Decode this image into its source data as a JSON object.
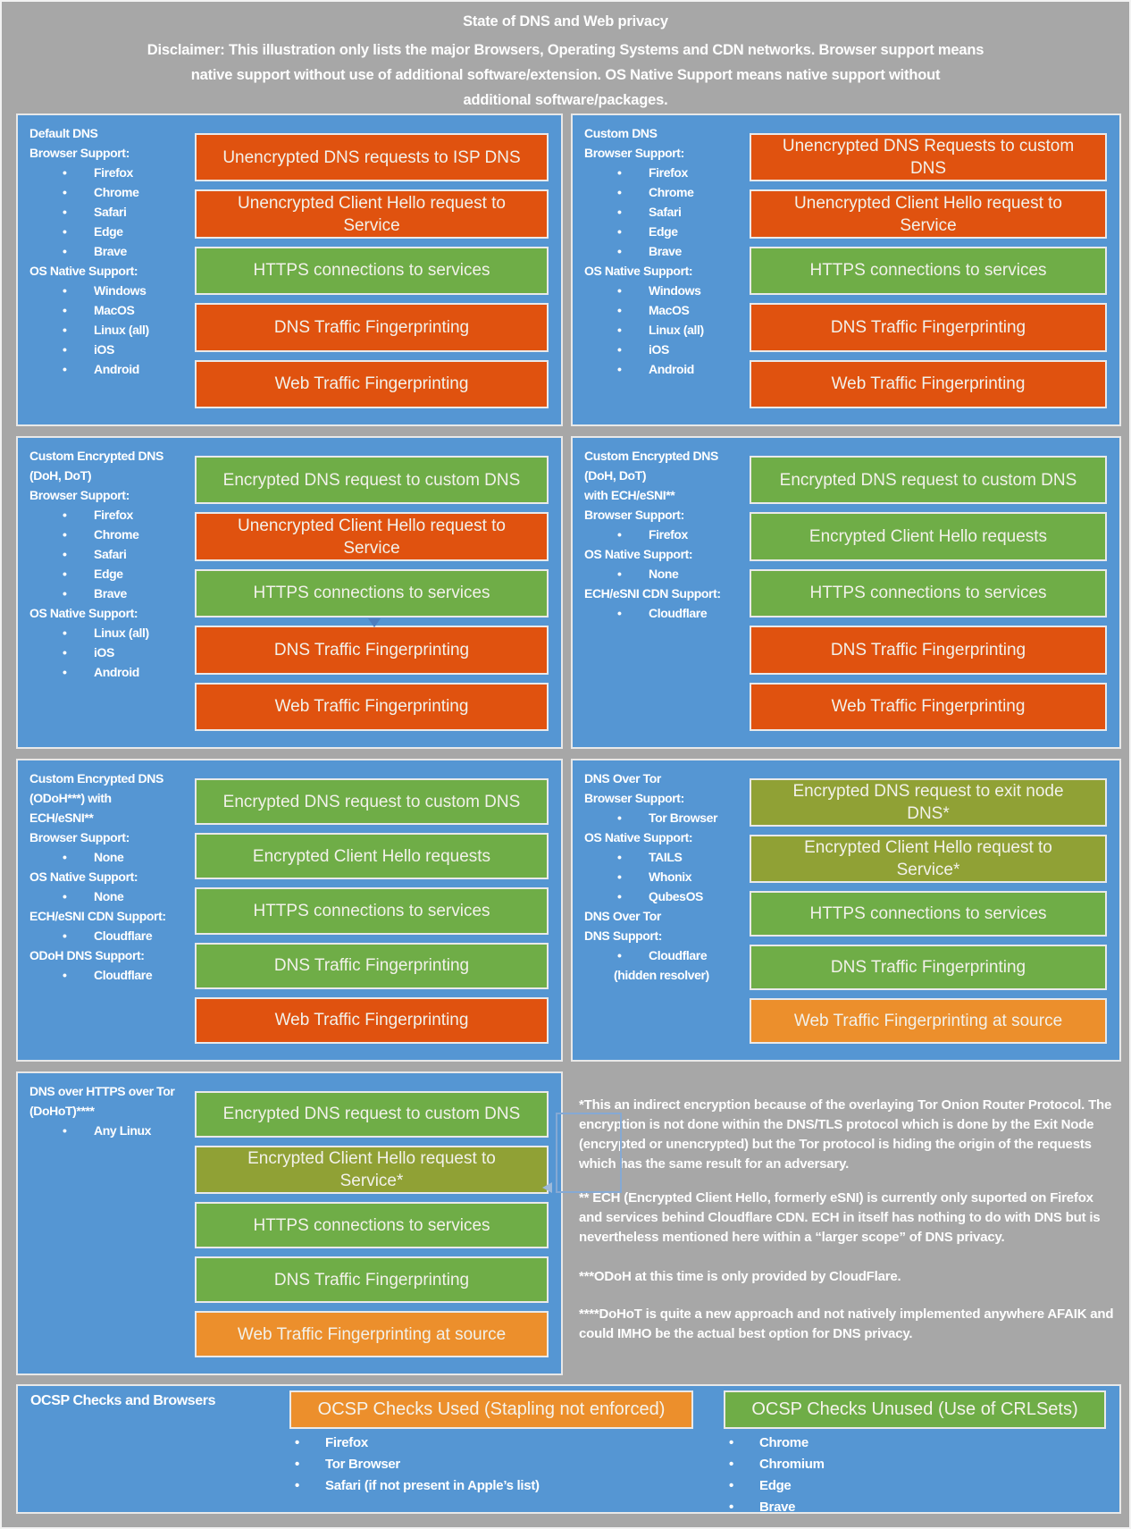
{
  "header": {
    "title": "State of DNS and Web privacy",
    "disclaimer_lines": [
      "Disclaimer: This illustration only lists the major Browsers, Operating Systems and CDN networks. Browser support means",
      "native support without use of additional software/extension. OS Native Support means native support without",
      "additional software/packages."
    ]
  },
  "colors": {
    "background": "#A7A7A7",
    "panel_blue": "#5596D3",
    "bar_red_bad": "#E0520F",
    "bar_green_good": "#6FAD47",
    "bar_olive_partial": "#90A135",
    "bar_amber_warning": "#EC8F2C"
  },
  "panels": [
    {
      "id": "default-dns",
      "sidebar": [
        {
          "t": "title",
          "text": "Default DNS"
        },
        {
          "t": "label",
          "text": "Browser Support:"
        },
        {
          "t": "bullet",
          "text": "Firefox"
        },
        {
          "t": "bullet",
          "text": "Chrome"
        },
        {
          "t": "bullet",
          "text": "Safari"
        },
        {
          "t": "bullet",
          "text": "Edge"
        },
        {
          "t": "bullet",
          "text": "Brave"
        },
        {
          "t": "label",
          "text": "OS Native Support:"
        },
        {
          "t": "bullet",
          "text": "Windows"
        },
        {
          "t": "bullet",
          "text": "MacOS"
        },
        {
          "t": "bullet",
          "text": "Linux (all)"
        },
        {
          "t": "bullet",
          "text": "iOS"
        },
        {
          "t": "bullet",
          "text": "Android"
        }
      ],
      "bars": [
        {
          "type": "bad",
          "text": "Unencrypted DNS requests to ISP DNS"
        },
        {
          "type": "bad",
          "text": "Unencrypted Client Hello request to Service"
        },
        {
          "type": "good",
          "text": "HTTPS connections to services"
        },
        {
          "type": "bad",
          "text": "DNS Traffic Fingerprinting"
        },
        {
          "type": "bad",
          "text": "Web Traffic Fingerprinting"
        }
      ]
    },
    {
      "id": "custom-dns",
      "sidebar": [
        {
          "t": "title",
          "text": "Custom DNS"
        },
        {
          "t": "label",
          "text": "Browser Support:"
        },
        {
          "t": "bullet",
          "text": "Firefox"
        },
        {
          "t": "bullet",
          "text": "Chrome"
        },
        {
          "t": "bullet",
          "text": "Safari"
        },
        {
          "t": "bullet",
          "text": "Edge"
        },
        {
          "t": "bullet",
          "text": "Brave"
        },
        {
          "t": "label",
          "text": "OS Native Support:"
        },
        {
          "t": "bullet",
          "text": "Windows"
        },
        {
          "t": "bullet",
          "text": "MacOS"
        },
        {
          "t": "bullet",
          "text": "Linux (all)"
        },
        {
          "t": "bullet",
          "text": "iOS"
        },
        {
          "t": "bullet",
          "text": "Android"
        }
      ],
      "bars": [
        {
          "type": "bad",
          "text": "Unencrypted DNS Requests to custom DNS"
        },
        {
          "type": "bad",
          "text": "Unencrypted Client Hello request to Service"
        },
        {
          "type": "good",
          "text": "HTTPS connections to services"
        },
        {
          "type": "bad",
          "text": "DNS Traffic Fingerprinting"
        },
        {
          "type": "bad",
          "text": "Web Traffic Fingerprinting"
        }
      ]
    },
    {
      "id": "custom-encrypted-dns",
      "sidebar": [
        {
          "t": "title",
          "text": "Custom Encrypted DNS"
        },
        {
          "t": "title",
          "text": "(DoH, DoT)"
        },
        {
          "t": "label",
          "text": "Browser Support:"
        },
        {
          "t": "bullet",
          "text": "Firefox"
        },
        {
          "t": "bullet",
          "text": "Chrome"
        },
        {
          "t": "bullet",
          "text": "Safari"
        },
        {
          "t": "bullet",
          "text": "Edge"
        },
        {
          "t": "bullet",
          "text": "Brave"
        },
        {
          "t": "label",
          "text": "OS Native Support:"
        },
        {
          "t": "bullet",
          "text": "Linux (all)"
        },
        {
          "t": "bullet",
          "text": "iOS"
        },
        {
          "t": "bullet",
          "text": "Android"
        }
      ],
      "bars": [
        {
          "type": "good",
          "text": "Encrypted DNS request to custom DNS"
        },
        {
          "type": "bad",
          "text": "Unencrypted Client Hello request to Service"
        },
        {
          "type": "good",
          "text": "HTTPS connections to services"
        },
        {
          "type": "bad",
          "text": "DNS Traffic Fingerprinting"
        },
        {
          "type": "bad",
          "text": "Web Traffic Fingerprinting"
        }
      ]
    },
    {
      "id": "custom-encrypted-dns-ech",
      "sidebar": [
        {
          "t": "title",
          "text": "Custom Encrypted DNS"
        },
        {
          "t": "title",
          "text": "(DoH, DoT)"
        },
        {
          "t": "title",
          "text": "with ECH/eSNI**"
        },
        {
          "t": "label",
          "text": "Browser Support:"
        },
        {
          "t": "bullet",
          "text": "Firefox"
        },
        {
          "t": "label",
          "text": "OS Native Support:"
        },
        {
          "t": "bullet",
          "text": "None"
        },
        {
          "t": "label",
          "text": "ECH/eSNI CDN Support:"
        },
        {
          "t": "bullet",
          "text": "Cloudflare"
        }
      ],
      "bars": [
        {
          "type": "good",
          "text": "Encrypted DNS request to custom DNS"
        },
        {
          "type": "good",
          "text": "Encrypted Client Hello requests"
        },
        {
          "type": "good",
          "text": "HTTPS connections to services"
        },
        {
          "type": "bad",
          "text": "DNS Traffic Fingerprinting"
        },
        {
          "type": "bad",
          "text": "Web Traffic Fingerprinting"
        }
      ]
    },
    {
      "id": "custom-encrypted-dns-odoh",
      "sidebar": [
        {
          "t": "title",
          "text": "Custom Encrypted DNS"
        },
        {
          "t": "title",
          "text": "(ODoH***) with"
        },
        {
          "t": "title",
          "text": "ECH/eSNI**"
        },
        {
          "t": "label",
          "text": "Browser Support:"
        },
        {
          "t": "bullet",
          "text": "None"
        },
        {
          "t": "label",
          "text": "OS Native Support:"
        },
        {
          "t": "bullet",
          "text": "None"
        },
        {
          "t": "label",
          "text": "ECH/eSNI CDN Support:"
        },
        {
          "t": "bullet",
          "text": "Cloudflare"
        },
        {
          "t": "label",
          "text": "ODoH DNS Support:"
        },
        {
          "t": "bullet",
          "text": "Cloudflare"
        }
      ],
      "bars": [
        {
          "type": "good",
          "text": "Encrypted DNS request to custom DNS"
        },
        {
          "type": "good",
          "text": "Encrypted Client Hello requests"
        },
        {
          "type": "good",
          "text": "HTTPS connections to services"
        },
        {
          "type": "good",
          "text": "DNS Traffic Fingerprinting"
        },
        {
          "type": "bad",
          "text": "Web Traffic Fingerprinting"
        }
      ]
    },
    {
      "id": "dns-over-tor",
      "sidebar": [
        {
          "t": "title",
          "text": "DNS Over Tor"
        },
        {
          "t": "label",
          "text": "Browser Support:"
        },
        {
          "t": "bullet",
          "text": "Tor Browser"
        },
        {
          "t": "label",
          "text": "OS Native Support:"
        },
        {
          "t": "bullet",
          "text": "TAILS"
        },
        {
          "t": "bullet",
          "text": "Whonix"
        },
        {
          "t": "bullet",
          "text": "QubesOS"
        },
        {
          "t": "label",
          "text": "DNS Over Tor"
        },
        {
          "t": "label",
          "text": "DNS Support:"
        },
        {
          "t": "bullet",
          "text": "Cloudflare"
        },
        {
          "t": "sub",
          "text": "(hidden resolver)"
        }
      ],
      "bars": [
        {
          "type": "mid",
          "text": "Encrypted DNS request to exit node DNS*"
        },
        {
          "type": "mid",
          "text": "Encrypted Client Hello request to Service*"
        },
        {
          "type": "good",
          "text": "HTTPS connections to services"
        },
        {
          "type": "good",
          "text": "DNS Traffic Fingerprinting"
        },
        {
          "type": "warn",
          "text": "Web Traffic Fingerprinting at source"
        }
      ]
    },
    {
      "id": "dohot",
      "sidebar": [
        {
          "t": "title",
          "text": "DNS over HTTPS over Tor"
        },
        {
          "t": "title",
          "text": "(DoHoT)****"
        },
        {
          "t": "bullet",
          "text": "Any Linux"
        }
      ],
      "bars": [
        {
          "type": "good",
          "text": "Encrypted DNS request to custom DNS"
        },
        {
          "type": "mid",
          "text": "Encrypted Client Hello request to Service*"
        },
        {
          "type": "good",
          "text": "HTTPS connections to services"
        },
        {
          "type": "good",
          "text": "DNS Traffic Fingerprinting"
        },
        {
          "type": "warn",
          "text": "Web Traffic Fingerprinting at source"
        }
      ]
    }
  ],
  "footnotes": [
    "*This an indirect encryption because of the overlaying Tor Onion Router Protocol. The encryption is not done within the DNS/TLS protocol which is done by the Exit Node (encrypted or unencrypted) but the Tor protocol is hiding the origin of the requests which has the same result for an adversary.",
    "** ECH (Encrypted Client Hello, formerly eSNI) is currently only suported on Firefox and services behind Cloudflare CDN. ECH in itself has nothing to do with DNS but is nevertheless mentioned here within a “larger scope” of DNS privacy.",
    "***ODoH at this time is only provided by CloudFlare.",
    "****DoHoT is quite a new approach and not natively implemented anywhere AFAIK and could IMHO be the actual best option for DNS privacy."
  ],
  "ocsp": {
    "title": "OCSP Checks and Browsers",
    "used_label": "OCSP Checks Used (Stapling not enforced)",
    "used_items": [
      {
        "t": "bullet",
        "text": "Firefox"
      },
      {
        "t": "bullet",
        "text": "Tor Browser"
      },
      {
        "t": "bullet",
        "text": "Safari (if not present in Apple’s list)"
      }
    ],
    "unused_label": "OCSP Checks Unused (Use of CRLSets)",
    "unused_items": [
      {
        "t": "bullet",
        "text": "Chrome"
      },
      {
        "t": "bullet",
        "text": "Chromium"
      },
      {
        "t": "bullet",
        "text": "Edge"
      },
      {
        "t": "bullet",
        "text": "Brave"
      }
    ]
  }
}
